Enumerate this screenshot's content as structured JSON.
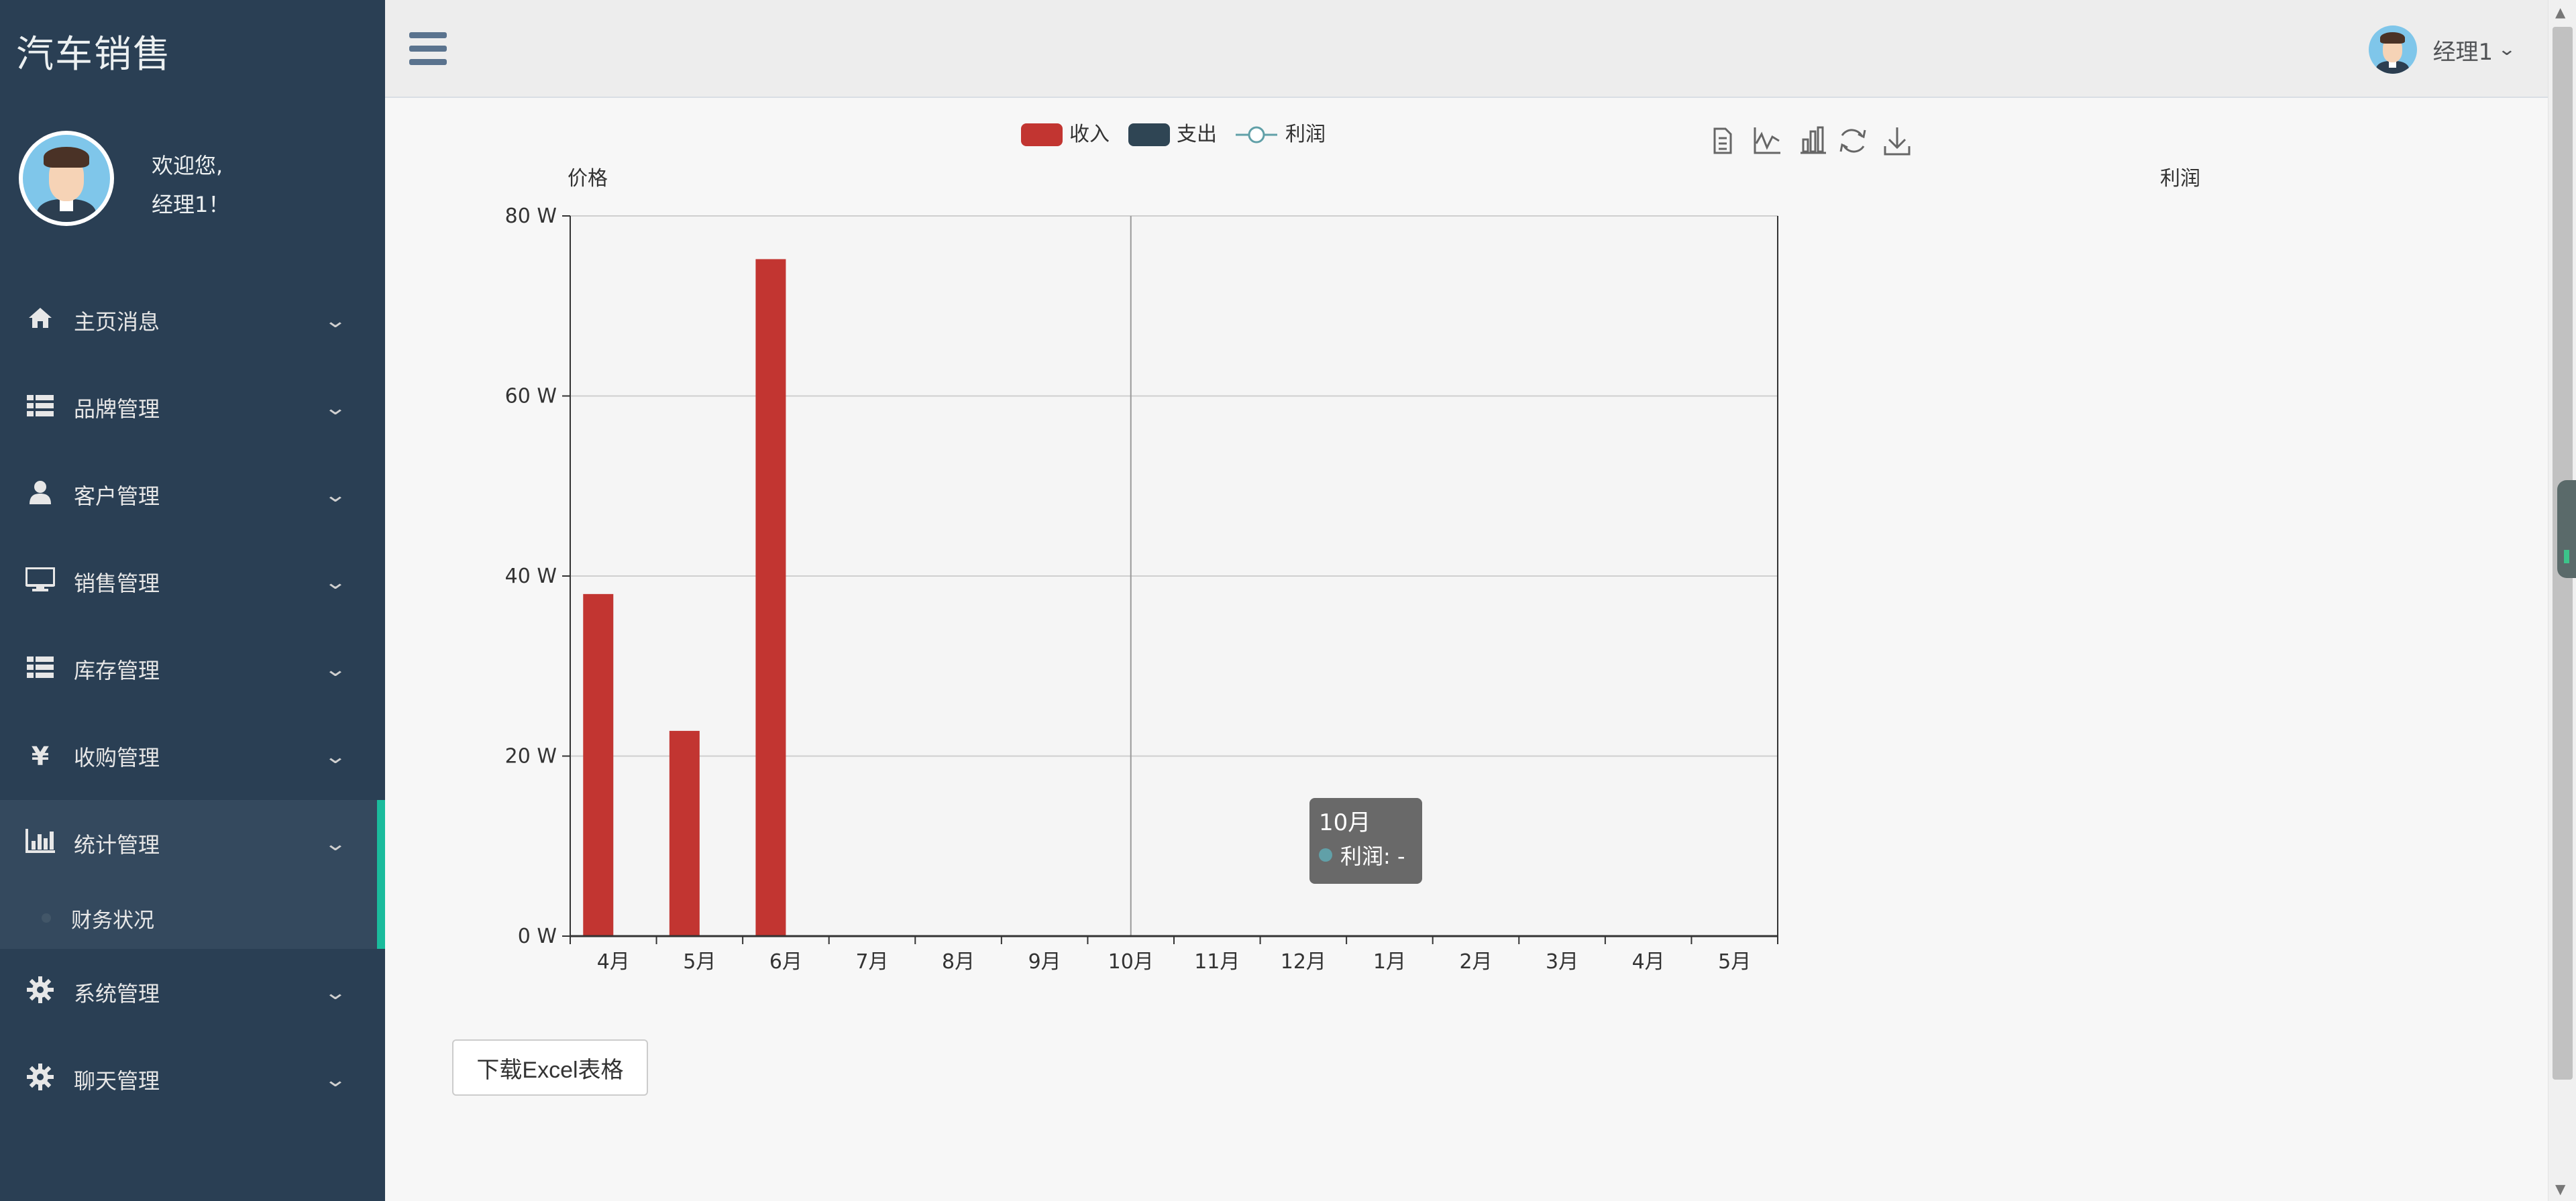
{
  "brand": "汽车销售",
  "profile": {
    "greeting": "欢迎您,",
    "name": "经理1！"
  },
  "sidebar": {
    "items": [
      {
        "label": "主页消息",
        "icon": "home-icon"
      },
      {
        "label": "品牌管理",
        "icon": "list-icon"
      },
      {
        "label": "客户管理",
        "icon": "user-icon"
      },
      {
        "label": "销售管理",
        "icon": "desktop-icon"
      },
      {
        "label": "库存管理",
        "icon": "list-icon"
      },
      {
        "label": "收购管理",
        "icon": "yen-icon"
      },
      {
        "label": "统计管理",
        "icon": "bar-chart-icon",
        "active": true
      },
      {
        "label": "系统管理",
        "icon": "gear-icon"
      },
      {
        "label": "聊天管理",
        "icon": "gear-icon"
      }
    ],
    "active_sub": "财务状况"
  },
  "topbar": {
    "user_name": "经理1"
  },
  "chart_data": {
    "type": "bar",
    "legend": [
      {
        "name": "收入",
        "color": "#c23531",
        "kind": "bar"
      },
      {
        "name": "支出",
        "color": "#2f4554",
        "kind": "bar"
      },
      {
        "name": "利润",
        "color": "#61a0a8",
        "kind": "line"
      }
    ],
    "categories": [
      "4月",
      "5月",
      "6月",
      "7月",
      "8月",
      "9月",
      "10月",
      "11月",
      "12月",
      "1月",
      "2月",
      "3月",
      "4月",
      "5月"
    ],
    "series": [
      {
        "name": "收入",
        "values": [
          38,
          22.8,
          75.2,
          null,
          null,
          null,
          null,
          null,
          null,
          null,
          null,
          null,
          null,
          null
        ]
      },
      {
        "name": "支出",
        "values": [
          null,
          null,
          null,
          null,
          null,
          null,
          null,
          null,
          null,
          null,
          null,
          null,
          null,
          null
        ]
      },
      {
        "name": "利润",
        "values": [
          null,
          null,
          null,
          null,
          null,
          null,
          null,
          null,
          null,
          null,
          null,
          null,
          null,
          null
        ]
      }
    ],
    "ylabel_left": "价格",
    "ylabel_right": "利润",
    "y_ticks": [
      "0 W",
      "20 W",
      "40 W",
      "60 W",
      "80 W"
    ],
    "ylim": [
      0,
      80
    ],
    "grid": true,
    "legend_position": "top-center",
    "toolbox": [
      "data-view-icon",
      "line-chart-icon",
      "bar-chart-icon",
      "restore-icon",
      "download-icon"
    ]
  },
  "tooltip": {
    "title": "10月",
    "row": "利润: -"
  },
  "download_button": "下载Excel表格"
}
